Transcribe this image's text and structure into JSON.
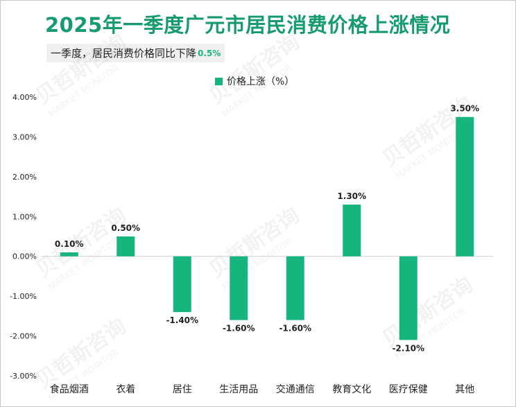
{
  "title": "2025年一季度广元市居民消费价格上涨情况",
  "subtitle": {
    "text": "一季度，居民消费价格同比下降",
    "value": "0.5%"
  },
  "colors": {
    "bar": "#17b57e",
    "title": "#169b6e"
  },
  "watermark": {
    "cn": "贝哲斯咨询",
    "en": "MARKET MONITOR"
  },
  "chart_data": {
    "type": "bar",
    "title": "",
    "xlabel": "",
    "ylabel": "",
    "legend": {
      "label": "价格上涨（%）",
      "position": "top-center"
    },
    "categories": [
      "食品烟酒",
      "衣着",
      "居住",
      "生活用品",
      "交通通信",
      "教育文化",
      "医疗保健",
      "其他"
    ],
    "series": [
      {
        "name": "价格上涨（%）",
        "values": [
          0.1,
          0.5,
          -1.4,
          -1.6,
          -1.6,
          1.3,
          -2.1,
          3.5
        ]
      }
    ],
    "data_labels": [
      "0.10%",
      "0.50%",
      "-1.40%",
      "-1.60%",
      "-1.60%",
      "1.30%",
      "-2.10%",
      "3.50%"
    ],
    "ylim": [
      -3.0,
      4.0
    ],
    "yticks": [
      4.0,
      3.0,
      2.0,
      1.0,
      0.0,
      -1.0,
      -2.0,
      -3.0
    ],
    "ytick_labels": [
      "4.00%",
      "3.00%",
      "2.00%",
      "1.00%",
      "0.00%",
      "-1.00%",
      "-2.00%",
      "-3.00%"
    ],
    "grid": false
  }
}
